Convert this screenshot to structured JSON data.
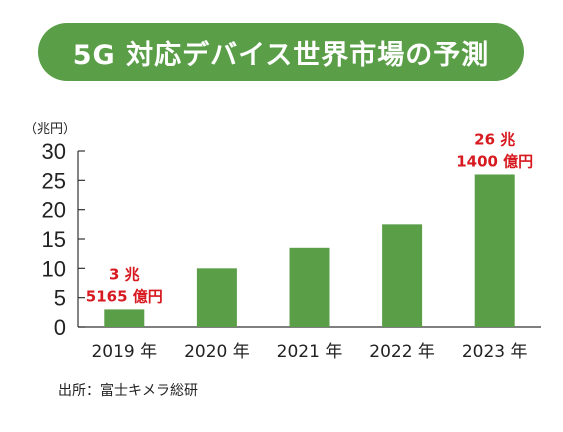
{
  "title": "5G 対応デバイス世界市場の予測",
  "colors": {
    "title_bg": "#5a9e48",
    "bar": "#5a9e48",
    "annotation": "#d71920",
    "axis": "#333333",
    "text": "#222222"
  },
  "chart_data": {
    "type": "bar",
    "categories": [
      "2019 年",
      "2020 年",
      "2021 年",
      "2022 年",
      "2023 年"
    ],
    "values": [
      3,
      10,
      13.5,
      17.5,
      26
    ],
    "ylabel": "（兆円）",
    "ylim": [
      0,
      30
    ],
    "yticks": [
      0,
      5,
      10,
      15,
      20,
      25,
      30
    ],
    "grid": false,
    "annotations": [
      {
        "index": 0,
        "lines": [
          "3 兆",
          "5165 億円"
        ]
      },
      {
        "index": 4,
        "lines": [
          "26 兆",
          "1400 億円"
        ]
      }
    ]
  },
  "source": "出所：富士キメラ総研"
}
